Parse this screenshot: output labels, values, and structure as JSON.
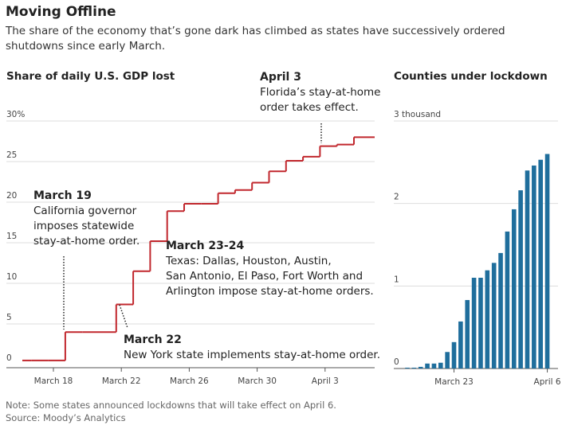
{
  "header": {
    "title": "Moving Offline",
    "subtitle": "The share of the economy that’s gone dark has climbed as states have successively ordered shutdowns since early March."
  },
  "footer": {
    "note": "Note: Some states announced lockdowns that will take effect on April 6.",
    "source": "Source: Moody’s Analytics"
  },
  "chart_data": [
    {
      "type": "line",
      "step": true,
      "title": "Share of daily U.S. GDP lost",
      "color": "#c1272d",
      "grid": true,
      "categories": [
        null,
        null,
        "March 18",
        null,
        null,
        null,
        "March 22",
        null,
        null,
        null,
        "March 26",
        null,
        null,
        null,
        "March 30",
        null,
        null,
        null,
        "April 3",
        null,
        null
      ],
      "values": [
        0.5,
        0.5,
        0.5,
        4,
        4,
        4,
        7.4,
        11.5,
        15.2,
        18.9,
        19.8,
        19.8,
        21.1,
        21.5,
        22.4,
        23.8,
        25.1,
        25.6,
        26.9,
        27.1,
        28.0
      ],
      "ylim": [
        0,
        30
      ],
      "yticks": [
        0,
        5,
        10,
        15,
        20,
        25,
        {
          "value": 30,
          "label": "30%"
        }
      ],
      "annotations": [
        {
          "title": "March 19",
          "lines": [
            "California governor",
            "imposes statewide",
            "stay-at-home order."
          ]
        },
        {
          "title": "March 23-24",
          "lines": [
            "Texas: Dallas, Houston, Austin,",
            "San Antonio, El Paso, Fort Worth and",
            "Arlington impose stay-at-home orders."
          ]
        },
        {
          "title": "March 22",
          "lines": [
            "New York state implements stay-at-home order."
          ]
        },
        {
          "title": "April 3",
          "lines": [
            "Florida’s stay-at-home",
            "order takes effect."
          ]
        }
      ]
    },
    {
      "type": "bar",
      "title": "Counties under lockdown",
      "color": "#1f6e9c",
      "grid": true,
      "categories": [
        null,
        null,
        null,
        null,
        null,
        null,
        null,
        "March 23",
        null,
        null,
        null,
        null,
        null,
        null,
        null,
        null,
        null,
        null,
        null,
        null,
        null,
        "April 6"
      ],
      "values": [
        0.01,
        0.01,
        0.02,
        0.06,
        0.06,
        0.07,
        0.2,
        0.32,
        0.57,
        0.83,
        1.1,
        1.1,
        1.19,
        1.28,
        1.4,
        1.66,
        1.93,
        2.16,
        2.4,
        2.46,
        2.53,
        2.6
      ],
      "ylim": [
        0,
        3
      ],
      "yticks": [
        0,
        1,
        2,
        {
          "value": 3,
          "label": "3 thousand"
        }
      ]
    }
  ]
}
